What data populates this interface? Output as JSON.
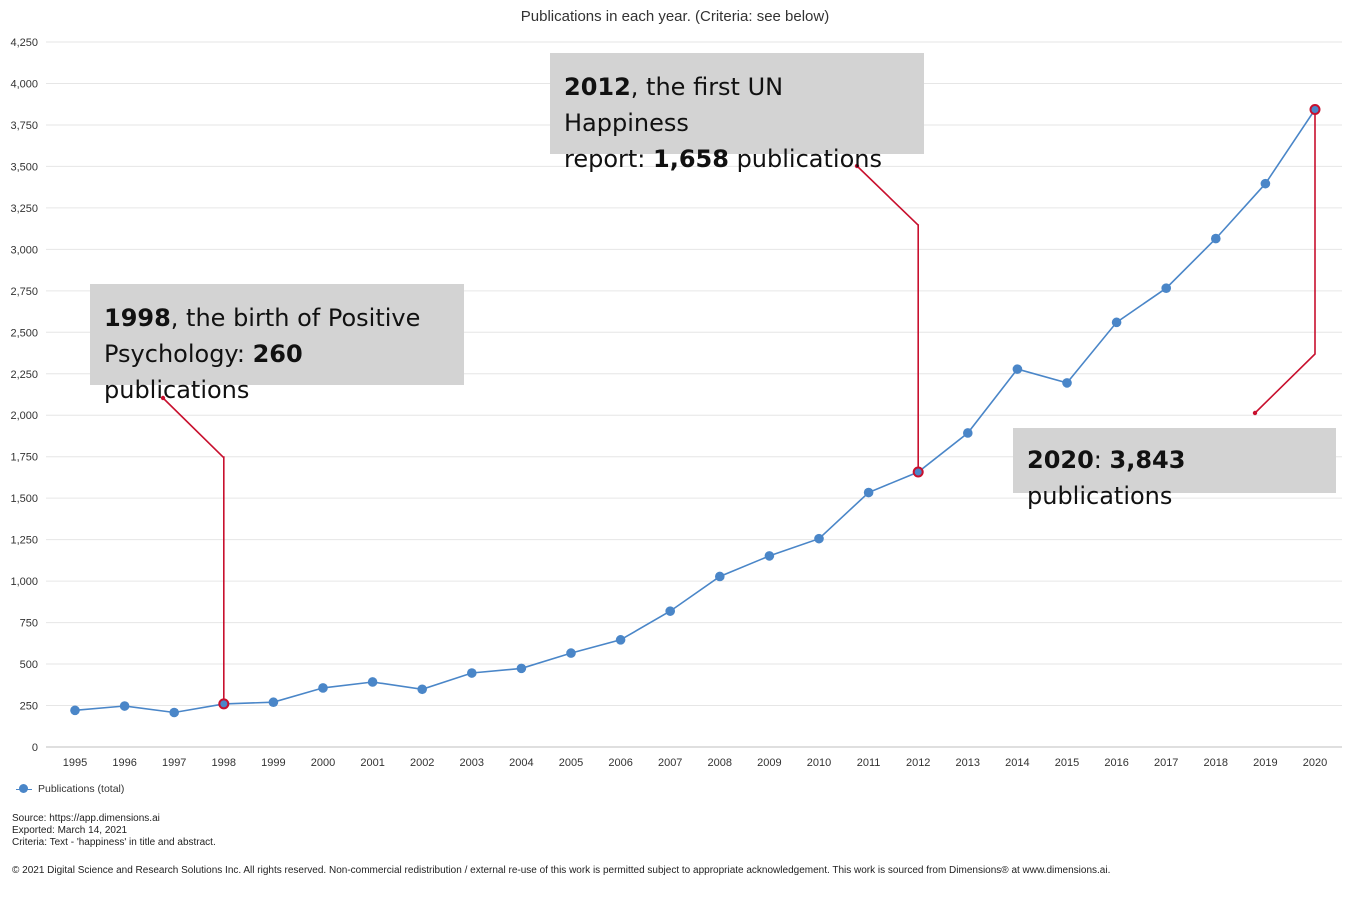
{
  "chart_data": {
    "type": "line",
    "title": "Publications in each year. (Criteria: see below)",
    "x": [
      "1995",
      "1996",
      "1997",
      "1998",
      "1999",
      "2000",
      "2001",
      "2002",
      "2003",
      "2004",
      "2005",
      "2006",
      "2007",
      "2008",
      "2009",
      "2010",
      "2011",
      "2012",
      "2013",
      "2014",
      "2015",
      "2016",
      "2017",
      "2018",
      "2019",
      "2020"
    ],
    "series": [
      {
        "name": "Publications (total)",
        "color": "#4a86c8",
        "values": [
          221,
          247,
          208,
          260,
          270,
          356,
          392,
          348,
          446,
          474,
          566,
          646,
          819,
          1028,
          1152,
          1256,
          1534,
          1658,
          1893,
          2278,
          2195,
          2560,
          2766,
          3065,
          3396,
          3843
        ]
      }
    ],
    "ylim": [
      0,
      4250
    ],
    "yticks": [
      "0",
      "250",
      "500",
      "750",
      "1,000",
      "1,250",
      "1,500",
      "1,750",
      "2,000",
      "2,250",
      "2,500",
      "2,750",
      "3,000",
      "3,250",
      "3,500",
      "3,750",
      "4,000",
      "4,250"
    ],
    "grid": true,
    "legend": "bottom-left",
    "highlight_color": "#c8102e",
    "highlights": [
      "1998",
      "2012",
      "2020"
    ],
    "annotations": [
      {
        "year_bold": "1998",
        "text1": ", the birth of Positive",
        "text2": "Psychology: ",
        "value_bold": "260",
        "text3": " publications"
      },
      {
        "year_bold": "2012",
        "text1": ", the first UN Happiness",
        "text2": "report: ",
        "value_bold": "1,658",
        "text3": " publications"
      },
      {
        "year_bold": "2020",
        "text1": ": ",
        "value_bold": "3,843",
        "text3": " publications"
      }
    ]
  },
  "footer": {
    "source": "Source: https://app.dimensions.ai",
    "exported": "Exported: March 14, 2021",
    "criteria": "Criteria: Text - 'happiness' in title and abstract.",
    "copyright": "© 2021 Digital Science and Research Solutions Inc. All rights reserved. Non-commercial redistribution / external re-use of this work is permitted subject to appropriate acknowledgement. This work is sourced from Dimensions® at www.dimensions.ai."
  }
}
